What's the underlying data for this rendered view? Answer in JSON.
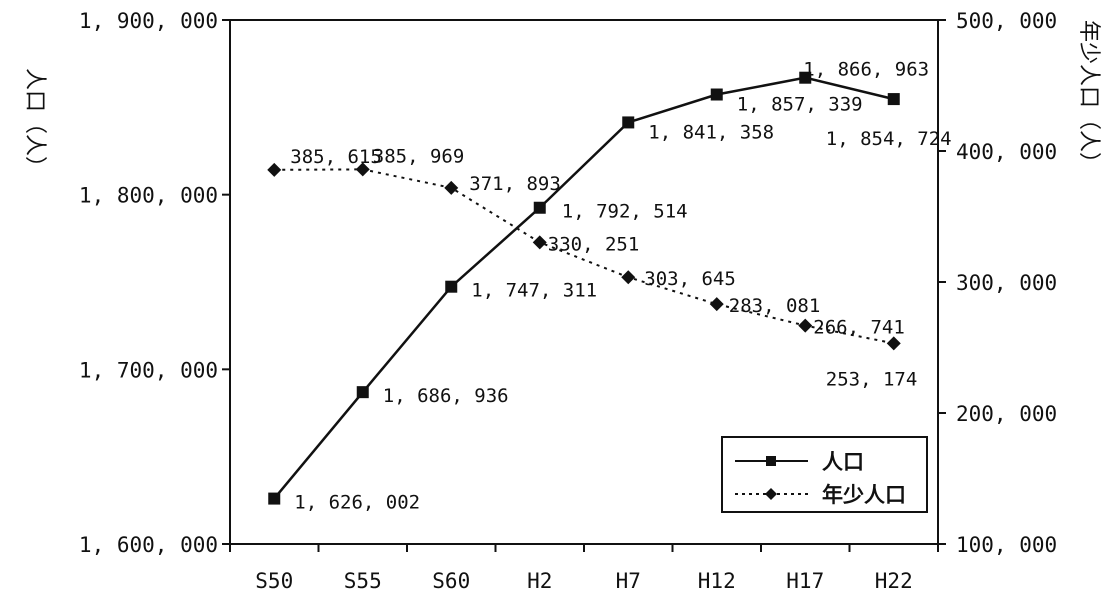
{
  "chart_data": {
    "type": "line",
    "categories": [
      "S50",
      "S55",
      "S60",
      "H2",
      "H7",
      "H12",
      "H17",
      "H22"
    ],
    "left_axis": {
      "label": "人口（人）",
      "ylim": [
        1600000,
        1900000
      ],
      "ticks": [
        "1, 600, 000",
        "1, 700, 000",
        "1, 800, 000",
        "1, 900, 000"
      ]
    },
    "right_axis": {
      "label": "年少人口（人）",
      "ylim": [
        100000,
        500000
      ],
      "ticks": [
        "100, 000",
        "200, 000",
        "300, 000",
        "400, 000",
        "500, 000"
      ]
    },
    "series": [
      {
        "name": "人口",
        "axis": "left",
        "style": "solid",
        "marker": "square",
        "values": [
          1626002,
          1686936,
          1747311,
          1792514,
          1841358,
          1857339,
          1866963,
          1854724
        ],
        "labels": [
          "1, 626, 002",
          "1, 686, 936",
          "1, 747, 311",
          "1, 792, 514",
          "1, 841, 358",
          "1, 857, 339",
          "1, 866, 963",
          "1, 854, 724"
        ]
      },
      {
        "name": "年少人口",
        "axis": "right",
        "style": "dotted",
        "marker": "diamond",
        "values": [
          385615,
          385969,
          371893,
          330251,
          303645,
          283081,
          266741,
          253174
        ],
        "labels": [
          "385, 615",
          "385, 969",
          "371, 893",
          "330, 251",
          "303, 645",
          "283, 081",
          "266, 741",
          "253, 174"
        ]
      }
    ],
    "legend_position": "bottom-right",
    "grid": false,
    "colors": {
      "line": "#111111",
      "background": "#ffffff"
    }
  }
}
